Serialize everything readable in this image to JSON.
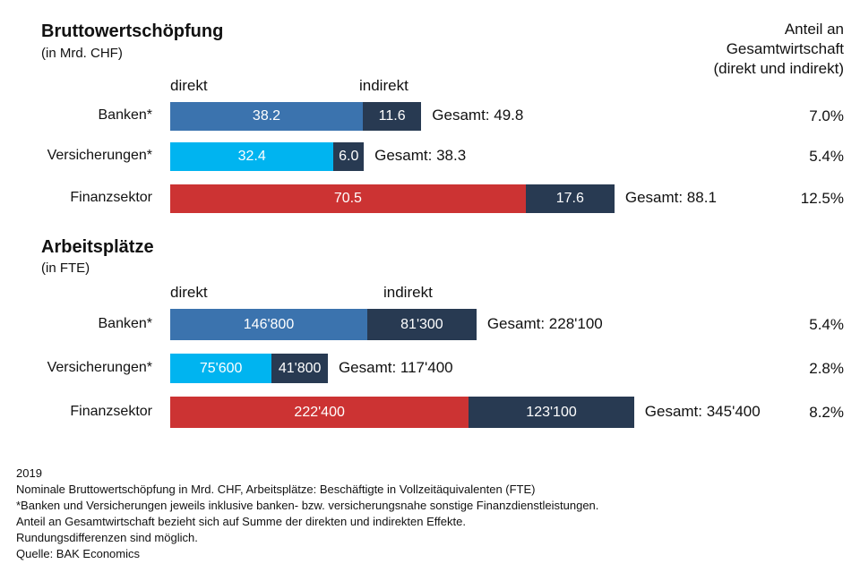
{
  "share_header": [
    "Anteil an",
    "Gesamtwirtschaft",
    "(direkt und indirekt)"
  ],
  "colors": {
    "banken": "#3b73ae",
    "versicherungen": "#00b4f0",
    "finanzsektor": "#cc3333",
    "indirekt": "#283a52"
  },
  "chart_data": [
    {
      "type": "bar",
      "stacked": true,
      "orientation": "horizontal",
      "title": "Bruttowertschöpfung",
      "subtitle": "(in Mrd. CHF)",
      "series_labels": [
        "direkt",
        "indirekt"
      ],
      "categories": [
        "Banken*",
        "Versicherungen*",
        "Finanzsektor"
      ],
      "series": [
        {
          "name": "direkt",
          "values": [
            38.2,
            32.4,
            70.5
          ],
          "labels": [
            "38.2",
            "32.4",
            "70.5"
          ]
        },
        {
          "name": "indirekt",
          "values": [
            11.6,
            6.0,
            17.6
          ],
          "labels": [
            "11.6",
            "6.0",
            "17.6"
          ]
        }
      ],
      "totals": [
        "Gesamt: 49.8",
        "Gesamt: 38.3",
        "Gesamt: 88.1"
      ],
      "shares": [
        "7.0%",
        "5.4%",
        "12.5%"
      ]
    },
    {
      "type": "bar",
      "stacked": true,
      "orientation": "horizontal",
      "title": "Arbeitsplätze",
      "subtitle": "(in FTE)",
      "series_labels": [
        "direkt",
        "indirekt"
      ],
      "categories": [
        "Banken*",
        "Versicherungen*",
        "Finanzsektor"
      ],
      "series": [
        {
          "name": "direkt",
          "values": [
            146800,
            75600,
            222400
          ],
          "labels": [
            "146'800",
            "75'600",
            "222'400"
          ]
        },
        {
          "name": "indirekt",
          "values": [
            81300,
            41800,
            123100
          ],
          "labels": [
            "81'300",
            "41'800",
            "123'100"
          ]
        }
      ],
      "totals": [
        "Gesamt: 228'100",
        "Gesamt: 117'400",
        "Gesamt: 345'400"
      ],
      "shares": [
        "5.4%",
        "2.8%",
        "8.2%"
      ]
    }
  ],
  "footnotes": [
    "2019",
    "Nominale Bruttowertschöpfung in Mrd. CHF, Arbeitsplätze: Beschäftigte in Vollzeitäquivalenten (FTE)",
    "*Banken und Versicherungen jeweils inklusive banken- bzw. versicherungsnahe sonstige Finanzdienstleistungen.",
    "Anteil an Gesamtwirtschaft bezieht sich auf Summe der direkten und indirekten Effekte.",
    "Rundungsdifferenzen sind möglich.",
    "Quelle: BAK Economics"
  ]
}
